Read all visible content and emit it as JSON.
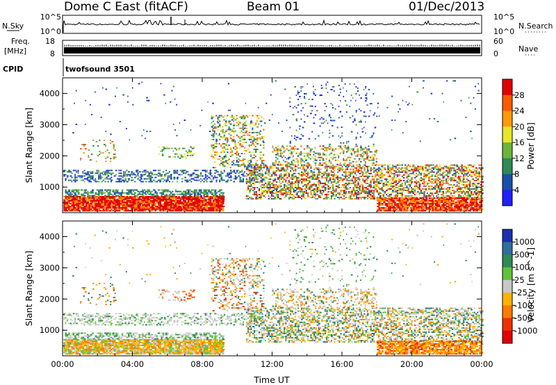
{
  "header": {
    "station": "Dome C East (fitACF)",
    "beam": "Beam 01",
    "date": "01/Dec/2013"
  },
  "noise_panel": {
    "left_label": "N.Sky",
    "left_top": "10^5",
    "left_bottom": "10^0",
    "right_top": "10^5",
    "right_bottom": "10^0",
    "right_label": "N.Search"
  },
  "freq_panel": {
    "left_label_1": "Freq.",
    "left_label_2": "[MHz]",
    "left_top": "18",
    "left_bottom": "8",
    "right_top": "60",
    "right_bottom": "0",
    "right_label": "Nave"
  },
  "cpid_panel": {
    "label": "CPID",
    "program": "twofsound 3501"
  },
  "chart_data": [
    {
      "type": "heatmap",
      "quantity": "Power",
      "ylabel": "Slant Range [km]",
      "xlabel": "Time UT",
      "x_ticks": [
        "00:00",
        "04:00",
        "08:00",
        "12:00",
        "16:00",
        "20:00",
        "00:00"
      ],
      "y_ticks": [
        "1000",
        "2000",
        "3000",
        "4000"
      ],
      "ylim": [
        180,
        4500
      ],
      "colorbar_label": "Power [dB]",
      "colorbar_ticks": [
        "4",
        "8",
        "12",
        "16",
        "20",
        "24",
        "28"
      ],
      "colors": [
        "#2020ff",
        "#1a4fa8",
        "#2f8a56",
        "#6ab53a",
        "#e7e62a",
        "#ff9a0a",
        "#ff5a00",
        "#e00000"
      ]
    },
    {
      "type": "heatmap",
      "quantity": "Velocity",
      "ylabel": "Slant Range [km]",
      "xlabel": "Time UT",
      "x_ticks": [
        "00:00",
        "04:00",
        "08:00",
        "12:00",
        "16:00",
        "20:00",
        "00:00"
      ],
      "y_ticks": [
        "1000",
        "2000",
        "3000",
        "4000"
      ],
      "ylim": [
        180,
        4500
      ],
      "colorbar_label": "Velocity [m s^-1]",
      "colorbar_ticks": [
        "1000",
        "500",
        "100",
        "25",
        "-25",
        "-100",
        "-500",
        "-1000"
      ],
      "colors": [
        "#1a2fb0",
        "#2f6f9a",
        "#2f8a56",
        "#62c23a",
        "#c8c8c8",
        "#ffb300",
        "#ff7a00",
        "#ee3000",
        "#e00000"
      ]
    }
  ]
}
